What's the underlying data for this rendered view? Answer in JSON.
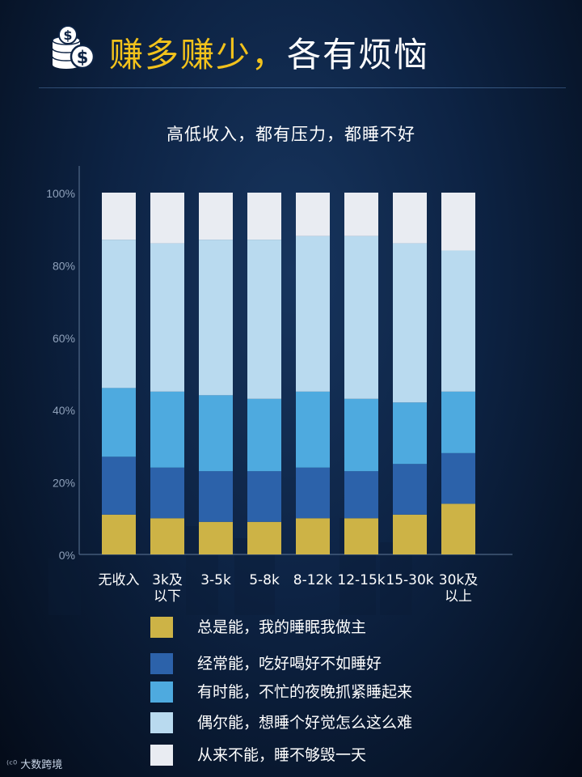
{
  "header": {
    "title_accent": "赚多赚少，",
    "title_rest": "各有烦恼"
  },
  "chart_data": {
    "type": "bar",
    "stacked": true,
    "title": "高低收入，都有压力，都睡不好",
    "categories": [
      "无收入",
      "3k及\n以下",
      "3-5k",
      "5-8k",
      "8-12k",
      "12-15k",
      "15-30k",
      "30k及\n以上"
    ],
    "ylim": [
      0,
      100
    ],
    "yticks": [
      0,
      20,
      40,
      60,
      80,
      100
    ],
    "ytick_labels": [
      "0%",
      "20%",
      "40%",
      "60%",
      "80%",
      "100%"
    ],
    "series": [
      {
        "name": "总是能，我的睡眠我做主",
        "color": "#cdb346",
        "values": [
          11,
          10,
          9,
          9,
          10,
          10,
          11,
          14
        ]
      },
      {
        "name": "经常能，吃好喝好不如睡好",
        "color": "#2c62aa",
        "values": [
          16,
          14,
          14,
          14,
          14,
          13,
          14,
          14
        ]
      },
      {
        "name": "有时能，不忙的夜晚抓紧睡起来",
        "color": "#4eaadf",
        "values": [
          19,
          21,
          21,
          20,
          21,
          20,
          17,
          17
        ]
      },
      {
        "name": "偶尔能，想睡个好觉怎么这么难",
        "color": "#b9daef",
        "values": [
          41,
          41,
          43,
          44,
          43,
          45,
          44,
          39
        ]
      },
      {
        "name": "从来不能，睡不够毁一天",
        "color": "#e9ecf2",
        "values": [
          13,
          14,
          13,
          13,
          12,
          12,
          14,
          16
        ]
      }
    ]
  },
  "watermark": {
    "logo": "⁽ᶜ⁰",
    "text": "大数跨境"
  }
}
